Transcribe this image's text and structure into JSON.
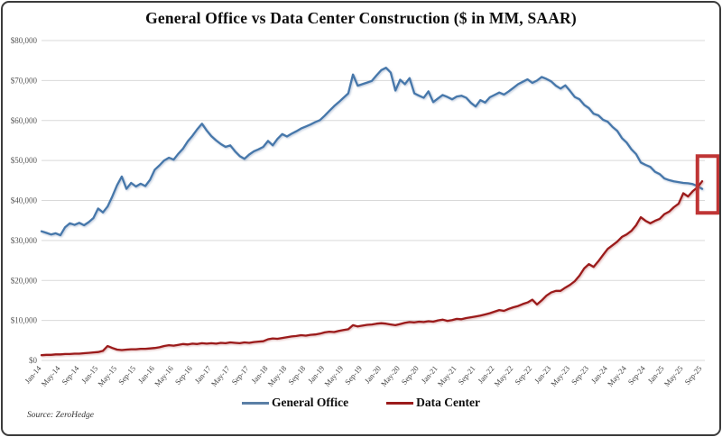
{
  "source": "Source: ZeroHedge",
  "legend": [
    {
      "label": "General Office",
      "color": "#5b7fa6"
    },
    {
      "label": "Data Center",
      "color": "#9b1b1b"
    }
  ],
  "chart_data": {
    "type": "line",
    "title": "General Office vs Data Center Construction ($ in MM, SAAR)",
    "xlabel": "",
    "ylabel": "",
    "x_start": "Jan-2014",
    "frequency": "monthly",
    "x_tick_every": 4,
    "x_tick_labels": [
      "Jan-14",
      "May-14",
      "Sep-14",
      "Jan-15",
      "May-15",
      "Sep-15",
      "Jan-16",
      "May-16",
      "Sep-16",
      "Jan-17",
      "May-17",
      "Sep-17",
      "Jan-18",
      "May-18",
      "Sep-18",
      "Jan-19",
      "May-19",
      "Sep-19",
      "Jan-20",
      "May-20",
      "Sep-20",
      "Jan-21",
      "May-21",
      "Sep-21",
      "Jan-22",
      "May-22",
      "Sep-22",
      "Jan-23",
      "May-23",
      "Sep-23",
      "Jan-24",
      "May-24",
      "Sep-24",
      "Jan-25",
      "May-25",
      "Sep-25"
    ],
    "ylim": [
      0,
      80000
    ],
    "y_tick_step": 10000,
    "y_tick_labels": [
      "$0",
      "$10,000",
      "$20,000",
      "$30,000",
      "$40,000",
      "$50,000",
      "$60,000",
      "$70,000",
      "$80,000"
    ],
    "grid": "horizontal",
    "legend_position": "bottom",
    "series": [
      {
        "id": "general-office",
        "name": "General Office",
        "color": "#4677aa",
        "shadow": "rgba(125,150,185,0.55)",
        "values": [
          32300,
          31900,
          31500,
          31800,
          31300,
          33300,
          34300,
          33900,
          34400,
          33800,
          34600,
          35600,
          38000,
          37000,
          38500,
          41000,
          43800,
          46000,
          42900,
          44400,
          43500,
          44200,
          43600,
          45200,
          47700,
          48800,
          50000,
          50700,
          50200,
          51700,
          53000,
          54800,
          56200,
          57800,
          59200,
          57500,
          56100,
          55000,
          54100,
          53400,
          53800,
          52300,
          51100,
          50400,
          51500,
          52300,
          52800,
          53400,
          54900,
          53800,
          55400,
          56600,
          56000,
          56700,
          57300,
          58000,
          58500,
          59000,
          59600,
          60100,
          61200,
          62400,
          63600,
          64600,
          65700,
          66800,
          71500,
          68700,
          69100,
          69500,
          69900,
          71300,
          72600,
          73200,
          72000,
          67500,
          70200,
          69100,
          70600,
          66800,
          66200,
          65700,
          67300,
          64600,
          65500,
          66400,
          65900,
          65300,
          66000,
          66200,
          65700,
          64400,
          63500,
          65100,
          64500,
          65800,
          66400,
          67000,
          66500,
          67300,
          68200,
          69100,
          69700,
          70300,
          69400,
          70000,
          70900,
          70400,
          69800,
          68700,
          68000,
          68800,
          67400,
          65900,
          65300,
          63900,
          63100,
          61700,
          61300,
          60200,
          59700,
          58400,
          57400,
          55600,
          54500,
          52800,
          51600,
          49500,
          48900,
          48400,
          47200,
          46600,
          45500,
          45100,
          44800,
          44600,
          44400,
          44300,
          44100,
          43600,
          42900
        ]
      },
      {
        "id": "data-center",
        "name": "Data Center",
        "color": "#9b1b1b",
        "shadow": "rgba(195,120,120,0.55)",
        "values": [
          1300,
          1400,
          1400,
          1500,
          1500,
          1600,
          1600,
          1700,
          1700,
          1800,
          1900,
          2000,
          2100,
          2400,
          3600,
          3100,
          2700,
          2600,
          2700,
          2800,
          2800,
          2900,
          2900,
          3000,
          3100,
          3300,
          3600,
          3800,
          3700,
          3900,
          4100,
          4000,
          4200,
          4100,
          4300,
          4200,
          4300,
          4200,
          4400,
          4300,
          4500,
          4400,
          4300,
          4500,
          4400,
          4600,
          4700,
          4800,
          5300,
          5500,
          5400,
          5600,
          5800,
          6000,
          6100,
          6300,
          6200,
          6400,
          6500,
          6700,
          7000,
          7200,
          7100,
          7400,
          7600,
          7800,
          8800,
          8500,
          8700,
          8900,
          9000,
          9200,
          9300,
          9200,
          9000,
          8800,
          9100,
          9400,
          9600,
          9500,
          9700,
          9600,
          9800,
          9700,
          10000,
          10200,
          9900,
          10100,
          10400,
          10300,
          10600,
          10800,
          11000,
          11200,
          11500,
          11800,
          12200,
          12600,
          12400,
          12900,
          13300,
          13600,
          14100,
          14500,
          15200,
          14000,
          15000,
          16200,
          17000,
          17400,
          17400,
          18200,
          18900,
          19800,
          21200,
          23000,
          24100,
          23400,
          24800,
          26400,
          27900,
          28800,
          29700,
          30900,
          31500,
          32400,
          33800,
          35800,
          34900,
          34300,
          34900,
          35400,
          36600,
          37200,
          38300,
          39200,
          41800,
          41000,
          42300,
          43300,
          44800
        ]
      }
    ],
    "annotation": {
      "label": "crossover-highlight",
      "color": "#bf3535",
      "x0_index": 139,
      "x1_index": 143.4,
      "value_min": 36900,
      "value_max": 51100
    }
  }
}
